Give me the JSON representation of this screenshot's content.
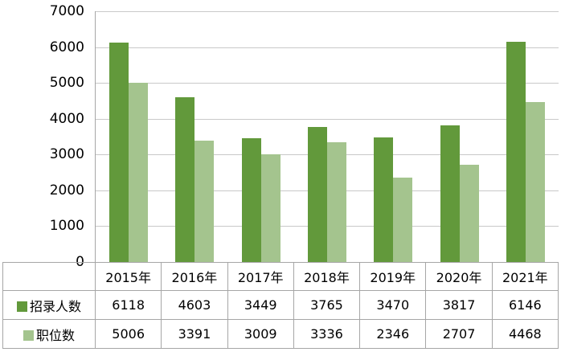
{
  "chart_data": {
    "type": "bar",
    "title": "",
    "xlabel": "",
    "ylabel": "",
    "categories": [
      "2015年",
      "2016年",
      "2017年",
      "2018年",
      "2019年",
      "2020年",
      "2021年"
    ],
    "series": [
      {
        "name": "招录人数",
        "color": "#62993B",
        "values": [
          6118,
          4603,
          3449,
          3765,
          3470,
          3817,
          6146
        ]
      },
      {
        "name": "职位数",
        "color": "#A4C48E",
        "values": [
          5006,
          3391,
          3009,
          3336,
          2346,
          2707,
          4468
        ]
      }
    ],
    "ylim": [
      0,
      7000
    ],
    "yticks": [
      0,
      1000,
      2000,
      3000,
      4000,
      5000,
      6000,
      7000
    ],
    "grid": true,
    "legend_position": "data-table-left",
    "data_table_shown": true
  },
  "colors": {
    "series1": "#62993B",
    "series2": "#A4C48E",
    "gridline": "#C9C9C9",
    "axis_border": "#A6A6A6",
    "text": "#000000",
    "background": "#FFFFFF"
  }
}
